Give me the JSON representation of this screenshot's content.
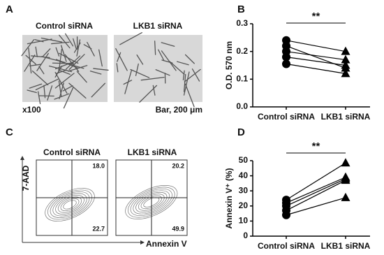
{
  "panels": {
    "a": {
      "letter": "A",
      "labels": [
        "Control siRNA",
        "LKB1 siRNA"
      ],
      "magnification": "x100",
      "scale_bar": "Bar, 200 μm"
    },
    "c": {
      "letter": "C",
      "labels": [
        "Control siRNA",
        "LKB1 siRNA"
      ],
      "y_label": "7-AAD",
      "x_label": "Annexin V",
      "quadrants": [
        {
          "upper_right": "18.0",
          "lower_right": "22.7"
        },
        {
          "upper_right": "20.2",
          "lower_right": "49.9"
        }
      ]
    }
  },
  "chart_data": [
    {
      "type": "line",
      "letter": "B",
      "ylabel": "O.D. 570 nm",
      "significance": "**",
      "categories": [
        "Control siRNA",
        "LKB1 siRNA"
      ],
      "markers": [
        "circle",
        "triangle"
      ],
      "color": "#000000",
      "series": [
        {
          "values": [
            0.24,
            0.2
          ]
        },
        {
          "values": [
            0.22,
            0.14
          ]
        },
        {
          "values": [
            0.2,
            0.17
          ]
        },
        {
          "values": [
            0.18,
            0.15
          ]
        },
        {
          "values": [
            0.155,
            0.12
          ]
        }
      ],
      "ylim": [
        0,
        0.3
      ],
      "yticks": [
        {
          "value": 0,
          "label": "0.0"
        },
        0.1,
        0.2,
        0.3
      ]
    },
    {
      "type": "line",
      "letter": "D",
      "ylabel": "Annexin V⁺ (%)",
      "significance": "**",
      "categories": [
        "Control siRNA",
        "LKB1 siRNA"
      ],
      "markers": [
        "circle",
        "triangle"
      ],
      "color": "#000000",
      "series": [
        {
          "values": [
            24,
            48.5
          ]
        },
        {
          "values": [
            22,
            39
          ]
        },
        {
          "values": [
            20,
            38
          ]
        },
        {
          "values": [
            17,
            37
          ]
        },
        {
          "values": [
            14,
            25.5
          ]
        }
      ],
      "ylim": [
        0,
        50
      ],
      "yticks": [
        0,
        10,
        20,
        30,
        40,
        50
      ]
    }
  ]
}
